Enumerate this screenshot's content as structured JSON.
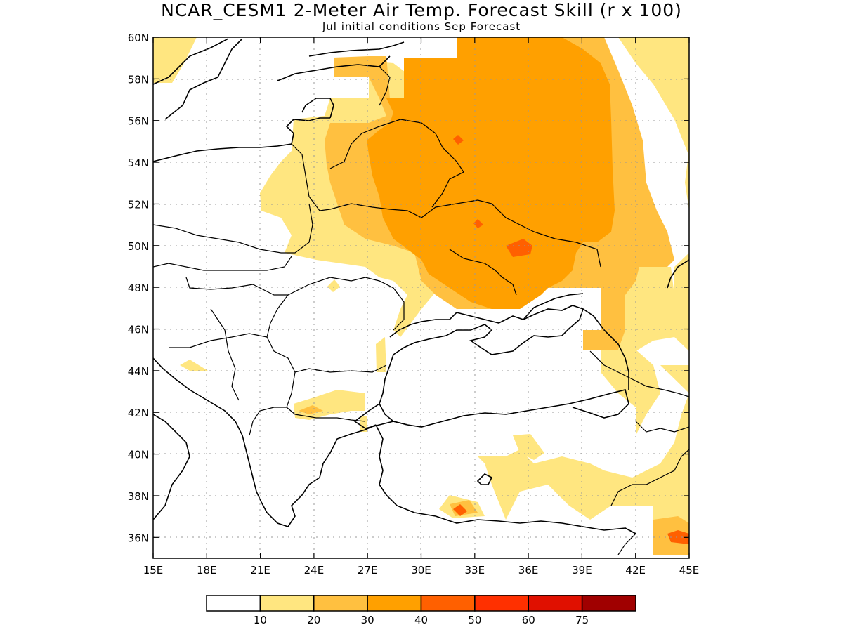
{
  "title": "NCAR_CESM1 2-Meter Air Temp. Forecast Skill (r x 100)",
  "subtitle": "Jul initial conditions  Sep Forecast",
  "colors": {
    "c10_20": "#ffe680",
    "c20_30": "#ffc040",
    "c30_40": "#ffa000",
    "c40_50": "#ff6000",
    "c50_60": "#ff3000",
    "c60_75": "#e01000",
    "c75_up": "#a00000",
    "coast": "#000000",
    "grid": "#999999"
  },
  "chart_data": {
    "type": "heatmap",
    "x_range": [
      15,
      45
    ],
    "y_range": [
      35,
      60
    ],
    "lon_ticks": [
      "15E",
      "18E",
      "21E",
      "24E",
      "27E",
      "30E",
      "33E",
      "36E",
      "39E",
      "42E",
      "45E"
    ],
    "lat_ticks": [
      "36N",
      "38N",
      "40N",
      "42N",
      "44N",
      "46N",
      "48N",
      "50N",
      "52N",
      "54N",
      "56N",
      "58N",
      "60N"
    ],
    "legend": {
      "labels": [
        "10",
        "20",
        "30",
        "40",
        "50",
        "60",
        "75"
      ]
    }
  }
}
